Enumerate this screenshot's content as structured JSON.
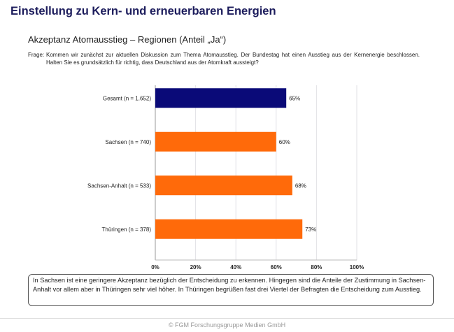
{
  "title": "Einstellung zu Kern- und erneuerbaren Energien",
  "subtitle": "Akzeptanz Atomausstieg – Regionen (Anteil „Ja“)",
  "question": {
    "label": "Frage:",
    "text": "Kommen wir zunächst zur aktuellen Diskussion zum Thema Atomausstieg. Der Bundestag hat einen Ausstieg aus der Kernenergie beschlossen. Halten Sie es grundsätzlich für richtig, dass Deutschland aus der Atomkraft aussteigt?"
  },
  "chart_data": {
    "type": "bar",
    "orientation": "horizontal",
    "categories": [
      "Gesamt (n = 1.652)",
      "Sachsen (n = 740)",
      "Sachsen-Anhalt (n = 533)",
      "Thüringen (n = 378)"
    ],
    "values": [
      65,
      60,
      68,
      73
    ],
    "data_labels": [
      "65%",
      "60%",
      "68%",
      "73%"
    ],
    "colors": [
      "#0a0a78",
      "#ff6a0a",
      "#ff6a0a",
      "#ff6a0a"
    ],
    "xlim": [
      0,
      100
    ],
    "ticks": [
      "0%",
      "20%",
      "40%",
      "60%",
      "80%",
      "100%"
    ],
    "grid": true
  },
  "note": "In Sachsen ist eine geringere Akzeptanz bezüglich der Entscheidung zu erkennen. Hingegen sind die Anteile der Zustimmung in Sachsen-Anhalt vor allem aber in Thüringen sehr viel höher. In Thüringen begrüßen fast drei Viertel der Befragten die Entscheidung zum Ausstieg.",
  "footer": "© FGM Forschungsgruppe Medien GmbH"
}
